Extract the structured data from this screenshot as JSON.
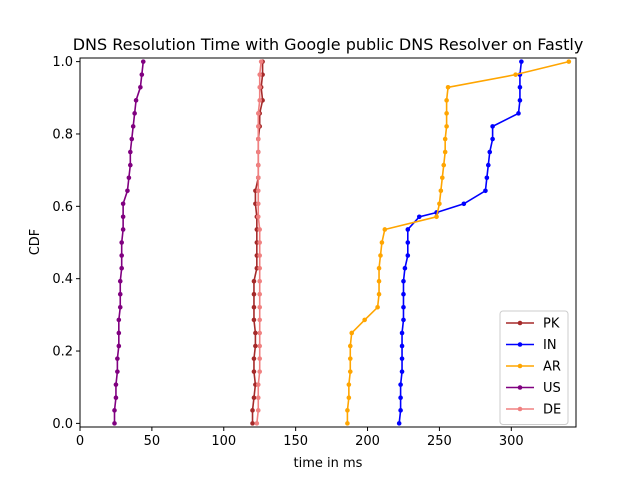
{
  "chart_data": {
    "type": "line",
    "title": "DNS Resolution Time with Google public DNS Resolver on Fastly",
    "xlabel": "time in ms",
    "ylabel": "CDF",
    "xlim": [
      0,
      345
    ],
    "ylim": [
      -0.01,
      1.01
    ],
    "xticks": [
      0,
      50,
      100,
      150,
      200,
      250,
      300
    ],
    "yticks": [
      0.0,
      0.2,
      0.4,
      0.6,
      0.8,
      1.0
    ],
    "ytick_labels": [
      "0.0",
      "0.2",
      "0.4",
      "0.6",
      "0.8",
      "1.0"
    ],
    "grid": false,
    "legend_position": "lower-right",
    "series": [
      {
        "name": "PK",
        "color": "#a52a2a",
        "points": [
          [
            120,
            0.0
          ],
          [
            120,
            0.036
          ],
          [
            121,
            0.071
          ],
          [
            122,
            0.107
          ],
          [
            121,
            0.143
          ],
          [
            121,
            0.179
          ],
          [
            122,
            0.214
          ],
          [
            122,
            0.25
          ],
          [
            121,
            0.286
          ],
          [
            121,
            0.321
          ],
          [
            121,
            0.357
          ],
          [
            121,
            0.393
          ],
          [
            123,
            0.429
          ],
          [
            123,
            0.464
          ],
          [
            123,
            0.5
          ],
          [
            123,
            0.536
          ],
          [
            123,
            0.571
          ],
          [
            122,
            0.607
          ],
          [
            122,
            0.643
          ],
          [
            124,
            0.679
          ],
          [
            124,
            0.714
          ],
          [
            124,
            0.75
          ],
          [
            124,
            0.786
          ],
          [
            125,
            0.821
          ],
          [
            125,
            0.857
          ],
          [
            127,
            0.893
          ],
          [
            126,
            0.929
          ],
          [
            127,
            0.964
          ],
          [
            127,
            1.0
          ]
        ]
      },
      {
        "name": "IN",
        "color": "#0000ff",
        "points": [
          [
            222,
            0.0
          ],
          [
            223,
            0.036
          ],
          [
            223,
            0.071
          ],
          [
            223,
            0.107
          ],
          [
            224,
            0.143
          ],
          [
            224,
            0.179
          ],
          [
            224,
            0.214
          ],
          [
            224,
            0.25
          ],
          [
            225,
            0.286
          ],
          [
            225,
            0.321
          ],
          [
            225,
            0.357
          ],
          [
            225,
            0.393
          ],
          [
            226,
            0.429
          ],
          [
            228,
            0.464
          ],
          [
            228,
            0.5
          ],
          [
            228,
            0.536
          ],
          [
            236,
            0.571
          ],
          [
            248,
            0.583
          ],
          [
            267,
            0.607
          ],
          [
            282,
            0.643
          ],
          [
            283,
            0.679
          ],
          [
            284,
            0.714
          ],
          [
            285,
            0.75
          ],
          [
            287,
            0.786
          ],
          [
            287,
            0.821
          ],
          [
            305,
            0.857
          ],
          [
            306,
            0.893
          ],
          [
            306,
            0.929
          ],
          [
            306,
            0.964
          ],
          [
            307,
            1.0
          ]
        ]
      },
      {
        "name": "AR",
        "color": "#ffa500",
        "points": [
          [
            186,
            0.0
          ],
          [
            186,
            0.036
          ],
          [
            187,
            0.071
          ],
          [
            187,
            0.107
          ],
          [
            188,
            0.143
          ],
          [
            188,
            0.179
          ],
          [
            188,
            0.214
          ],
          [
            189,
            0.25
          ],
          [
            198,
            0.286
          ],
          [
            207,
            0.321
          ],
          [
            208,
            0.357
          ],
          [
            208,
            0.393
          ],
          [
            208,
            0.429
          ],
          [
            209,
            0.464
          ],
          [
            210,
            0.5
          ],
          [
            212,
            0.536
          ],
          [
            248,
            0.571
          ],
          [
            250,
            0.607
          ],
          [
            251,
            0.643
          ],
          [
            252,
            0.679
          ],
          [
            253,
            0.714
          ],
          [
            254,
            0.75
          ],
          [
            254,
            0.786
          ],
          [
            255,
            0.821
          ],
          [
            255,
            0.857
          ],
          [
            255,
            0.893
          ],
          [
            256,
            0.929
          ],
          [
            303,
            0.964
          ],
          [
            340,
            1.0
          ]
        ]
      },
      {
        "name": "US",
        "color": "#800080",
        "points": [
          [
            24,
            0.0
          ],
          [
            24,
            0.036
          ],
          [
            25,
            0.071
          ],
          [
            25,
            0.107
          ],
          [
            26,
            0.143
          ],
          [
            26,
            0.179
          ],
          [
            27,
            0.214
          ],
          [
            27,
            0.25
          ],
          [
            27,
            0.286
          ],
          [
            28,
            0.321
          ],
          [
            28,
            0.357
          ],
          [
            28,
            0.393
          ],
          [
            29,
            0.429
          ],
          [
            29,
            0.464
          ],
          [
            29,
            0.5
          ],
          [
            30,
            0.536
          ],
          [
            30,
            0.571
          ],
          [
            30,
            0.607
          ],
          [
            33,
            0.643
          ],
          [
            34,
            0.679
          ],
          [
            35,
            0.714
          ],
          [
            35,
            0.75
          ],
          [
            36,
            0.786
          ],
          [
            37,
            0.821
          ],
          [
            38,
            0.857
          ],
          [
            39,
            0.893
          ],
          [
            42,
            0.929
          ],
          [
            43,
            0.964
          ],
          [
            44,
            1.0
          ]
        ]
      },
      {
        "name": "DE",
        "color": "#f08080",
        "points": [
          [
            123,
            0.0
          ],
          [
            124,
            0.036
          ],
          [
            124,
            0.071
          ],
          [
            124,
            0.107
          ],
          [
            125,
            0.143
          ],
          [
            125,
            0.179
          ],
          [
            125,
            0.214
          ],
          [
            125,
            0.25
          ],
          [
            125,
            0.286
          ],
          [
            125,
            0.321
          ],
          [
            125,
            0.357
          ],
          [
            125,
            0.393
          ],
          [
            125,
            0.429
          ],
          [
            125,
            0.464
          ],
          [
            125,
            0.5
          ],
          [
            125,
            0.536
          ],
          [
            124,
            0.571
          ],
          [
            124,
            0.607
          ],
          [
            124,
            0.643
          ],
          [
            124,
            0.679
          ],
          [
            124,
            0.714
          ],
          [
            124,
            0.75
          ],
          [
            124,
            0.786
          ],
          [
            124,
            0.821
          ],
          [
            124,
            0.857
          ],
          [
            125,
            0.893
          ],
          [
            125,
            0.929
          ],
          [
            125,
            0.964
          ],
          [
            126,
            1.0
          ]
        ]
      }
    ]
  }
}
